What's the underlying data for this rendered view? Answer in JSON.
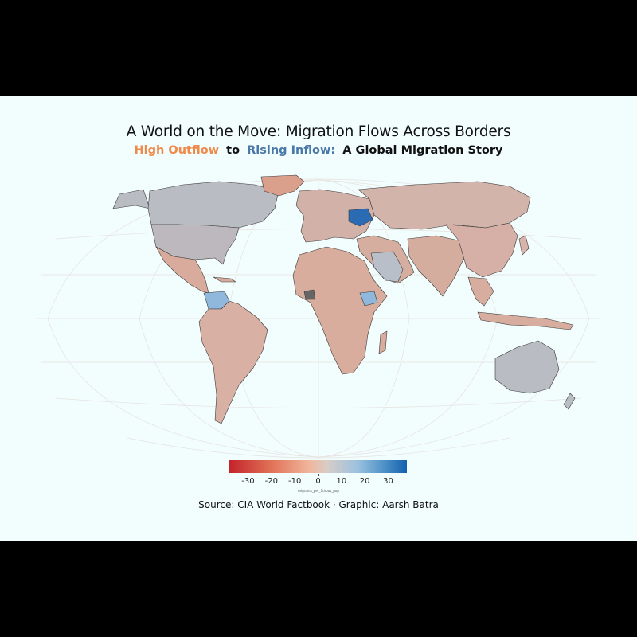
{
  "title": "A World on the Move: Migration Flows Across Borders",
  "subtitle": {
    "part1": "High Outflow",
    "part2": "to",
    "part3": "Rising Inflow:",
    "part4": "A Global Migration Story"
  },
  "legend": {
    "title": "migrants_per_1thous_pop",
    "ticks": [
      "-30",
      "-20",
      "-10",
      "0",
      "10",
      "20",
      "30"
    ],
    "min": -38,
    "max": 38,
    "colors": [
      "#c4232a",
      "#f0b69c",
      "#d8ccc6",
      "#9cc2df",
      "#1460ae"
    ]
  },
  "source": "Source: CIA World Factbook · Graphic: Aarsh Batra",
  "map_colors": {
    "background": "#f2fdfd",
    "frame": "#000000",
    "land_default": "#d5b4a9",
    "outflow": "#dba08c",
    "inflow_light": "#b4c0cc",
    "inflow_mid": "#8fb8dc",
    "inflow_strong": "#2a6bb4",
    "no_data": "#666666"
  }
}
